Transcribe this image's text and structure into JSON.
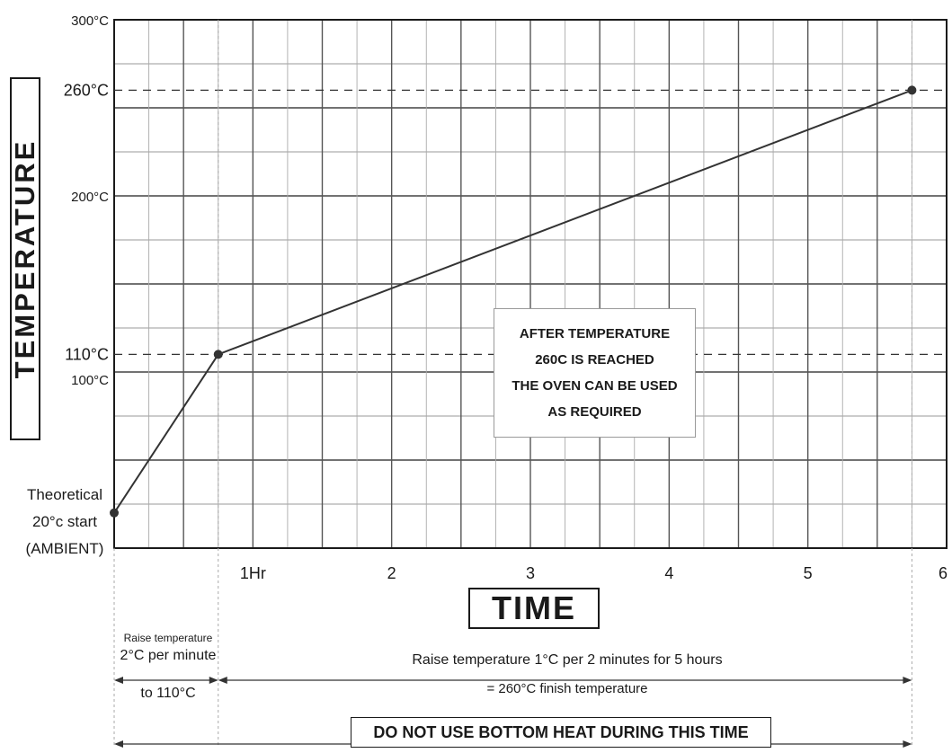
{
  "chart_data": {
    "type": "line",
    "ylabel": "TEMPERATURE",
    "xlabel": "TIME",
    "x_ticks": [
      "1Hr",
      "2",
      "3",
      "4",
      "5",
      "6"
    ],
    "y_ticks": [
      {
        "value": 300,
        "label": "300°C"
      },
      {
        "value": 260,
        "label": "260°C"
      },
      {
        "value": 200,
        "label": "200°C"
      },
      {
        "value": 110,
        "label": "110°C"
      },
      {
        "value": 100,
        "label": "100°C"
      }
    ],
    "xlim": [
      0,
      6
    ],
    "ylim": [
      0,
      300
    ],
    "grid": true,
    "series": [
      {
        "x": [
          0,
          0.75,
          5.75
        ],
        "y": [
          20,
          110,
          260
        ]
      }
    ],
    "reference_lines": [
      110,
      260
    ],
    "annotation_box": [
      "AFTER TEMPERATURE",
      "260C IS REACHED",
      "THE OVEN CAN BE USED",
      "AS REQUIRED"
    ],
    "start_label": [
      "Theoretical",
      "20°c start",
      "(AMBIENT)"
    ],
    "phase1": [
      "Raise temperature",
      "2°C per minute",
      "to 110°C"
    ],
    "phase2": [
      "Raise temperature 1°C per 2 minutes for 5 hours",
      "= 260°C finish temperature"
    ],
    "warning": "DO NOT USE BOTTOM HEAT DURING THIS TIME"
  }
}
